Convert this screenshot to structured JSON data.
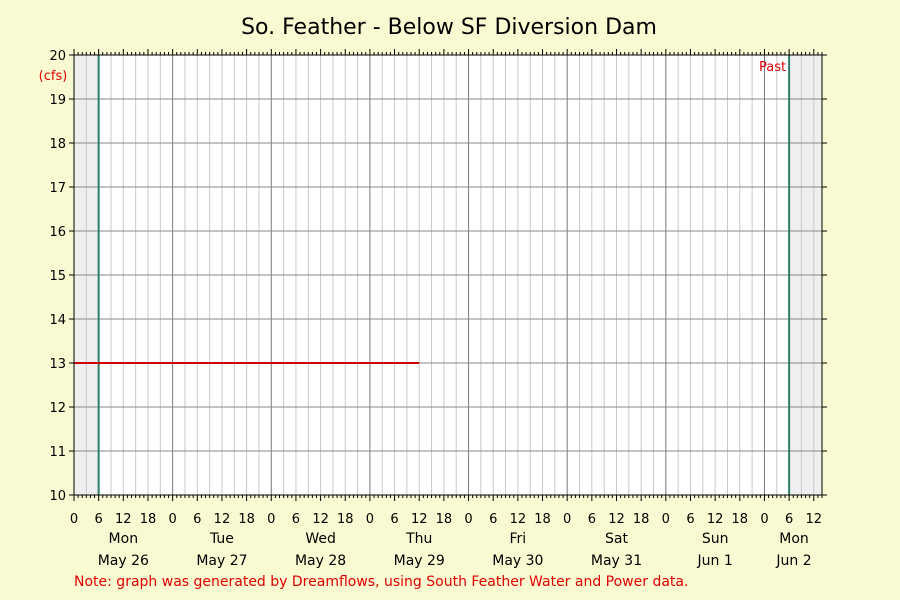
{
  "chart_data": {
    "type": "line",
    "title": "So. Feather - Below SF Diversion Dam",
    "ylabel": "(cfs)",
    "ylim": [
      10,
      20
    ],
    "yticks": [
      "10",
      "11",
      "12",
      "13",
      "14",
      "15",
      "16",
      "17",
      "18",
      "19",
      "20"
    ],
    "x_hour_tick_labels": [
      "0",
      "6",
      "12",
      "18"
    ],
    "days": [
      {
        "weekday": "Mon",
        "date": "May 26"
      },
      {
        "weekday": "Tue",
        "date": "May 27"
      },
      {
        "weekday": "Wed",
        "date": "May 28"
      },
      {
        "weekday": "Thu",
        "date": "May 29"
      },
      {
        "weekday": "Fri",
        "date": "May 30"
      },
      {
        "weekday": "Sat",
        "date": "May 31"
      },
      {
        "weekday": "Sun",
        "date": "Jun 1"
      },
      {
        "weekday": "Mon",
        "date": "Jun 2"
      }
    ],
    "xlim": [
      "May 26 00:00",
      "Jun 2 14:00"
    ],
    "shaded_regions": [
      {
        "from": "May 26 00:00",
        "to": "May 26 06:00"
      },
      {
        "from": "Jun 2 06:00",
        "to": "Jun 2 14:00"
      }
    ],
    "vertical_markers": [
      "May 26 06:00",
      "Jun 2 06:00"
    ],
    "marker_label": "Past",
    "series": [
      {
        "color": "#d00000",
        "x": [
          "May 26 00:00",
          "May 29 12:00"
        ],
        "y": [
          13,
          13
        ]
      }
    ],
    "grid": true
  },
  "note": "Note: graph was generated by Dreamflows, using South Feather Water and Power data.",
  "colors": {
    "background": "#fafad2",
    "plot_area": "#ffffff",
    "shade": "#efefef",
    "marker": "#2e7d6b",
    "series": "#d00000",
    "accent_text": "#e00000"
  }
}
